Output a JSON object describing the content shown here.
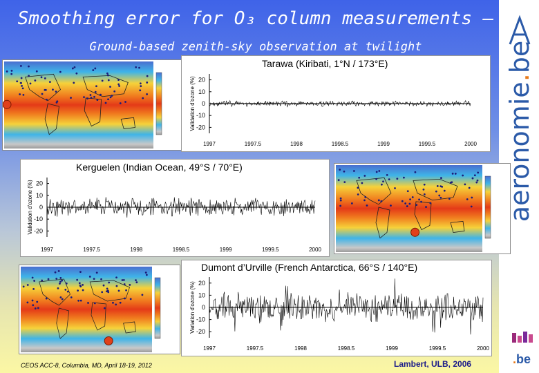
{
  "slide": {
    "title": "Smoothing error for O₃ column measurements –",
    "subtitle": "Ground-based zenith-sky observation at twilight",
    "footer_left": "CEOS ACC-8, Columbia, MD, April 18-19, 2012",
    "footer_right": "Lambert, ULB, 2006",
    "brand": {
      "prefix": "aeronomie",
      "dot": ".",
      "suffix": "be"
    },
    "logo_small": {
      "dot": ".",
      "text": "be"
    },
    "colors": {
      "brand_blue": "#2b5aa8",
      "brand_orange": "#e77a1a",
      "title_white": "#ffffff"
    }
  },
  "chart_data": [
    {
      "type": "line",
      "title": "Tarawa (Kiribati,  1°N / 173°E)",
      "ylabel": "Validation d'ozone (%)",
      "xlabel": "",
      "xlim": [
        1997,
        2000
      ],
      "ylim": [
        -25,
        25
      ],
      "x_ticks": [
        "1997",
        "1997.5",
        "1998",
        "1998.5",
        "1999",
        "1999.5",
        "2000"
      ],
      "y_ticks": [
        -20,
        -10,
        0,
        10,
        20
      ],
      "series": [
        {
          "amplitude": 1.5,
          "noise": 1.2,
          "seed": 11
        }
      ]
    },
    {
      "type": "line",
      "title": "Kerguelen (Indian Ocean,  49°S / 70°E)",
      "ylabel": "Validation d'ozone (%)",
      "xlabel": "",
      "xlim": [
        1997,
        2000
      ],
      "ylim": [
        -25,
        25
      ],
      "x_ticks": [
        "1997",
        "1997.5",
        "1998",
        "1998.5",
        "1999",
        "1999.5",
        "2000"
      ],
      "y_ticks": [
        -20,
        -10,
        0,
        10,
        20
      ],
      "series": [
        {
          "amplitude": 4,
          "noise": 5,
          "seed": 23
        }
      ]
    },
    {
      "type": "line",
      "title": "Dumont d’Urville (French Antarctica,  66°S / 140°E)",
      "ylabel": "Variation d'ozone (%)",
      "xlabel": "",
      "xlim": [
        1997,
        2000
      ],
      "ylim": [
        -25,
        25
      ],
      "x_ticks": [
        "1997",
        "1997.5",
        "1998",
        "1998.5",
        "1999",
        "1999.5",
        "2000"
      ],
      "y_ticks": [
        -20,
        -10,
        0,
        10,
        20
      ],
      "series": [
        {
          "amplitude": 8,
          "noise": 5,
          "seed": 37
        }
      ]
    }
  ],
  "maps": [
    {
      "station_lat": 1
    },
    {
      "station_lat": -49
    },
    {
      "station_lat": -66
    }
  ]
}
